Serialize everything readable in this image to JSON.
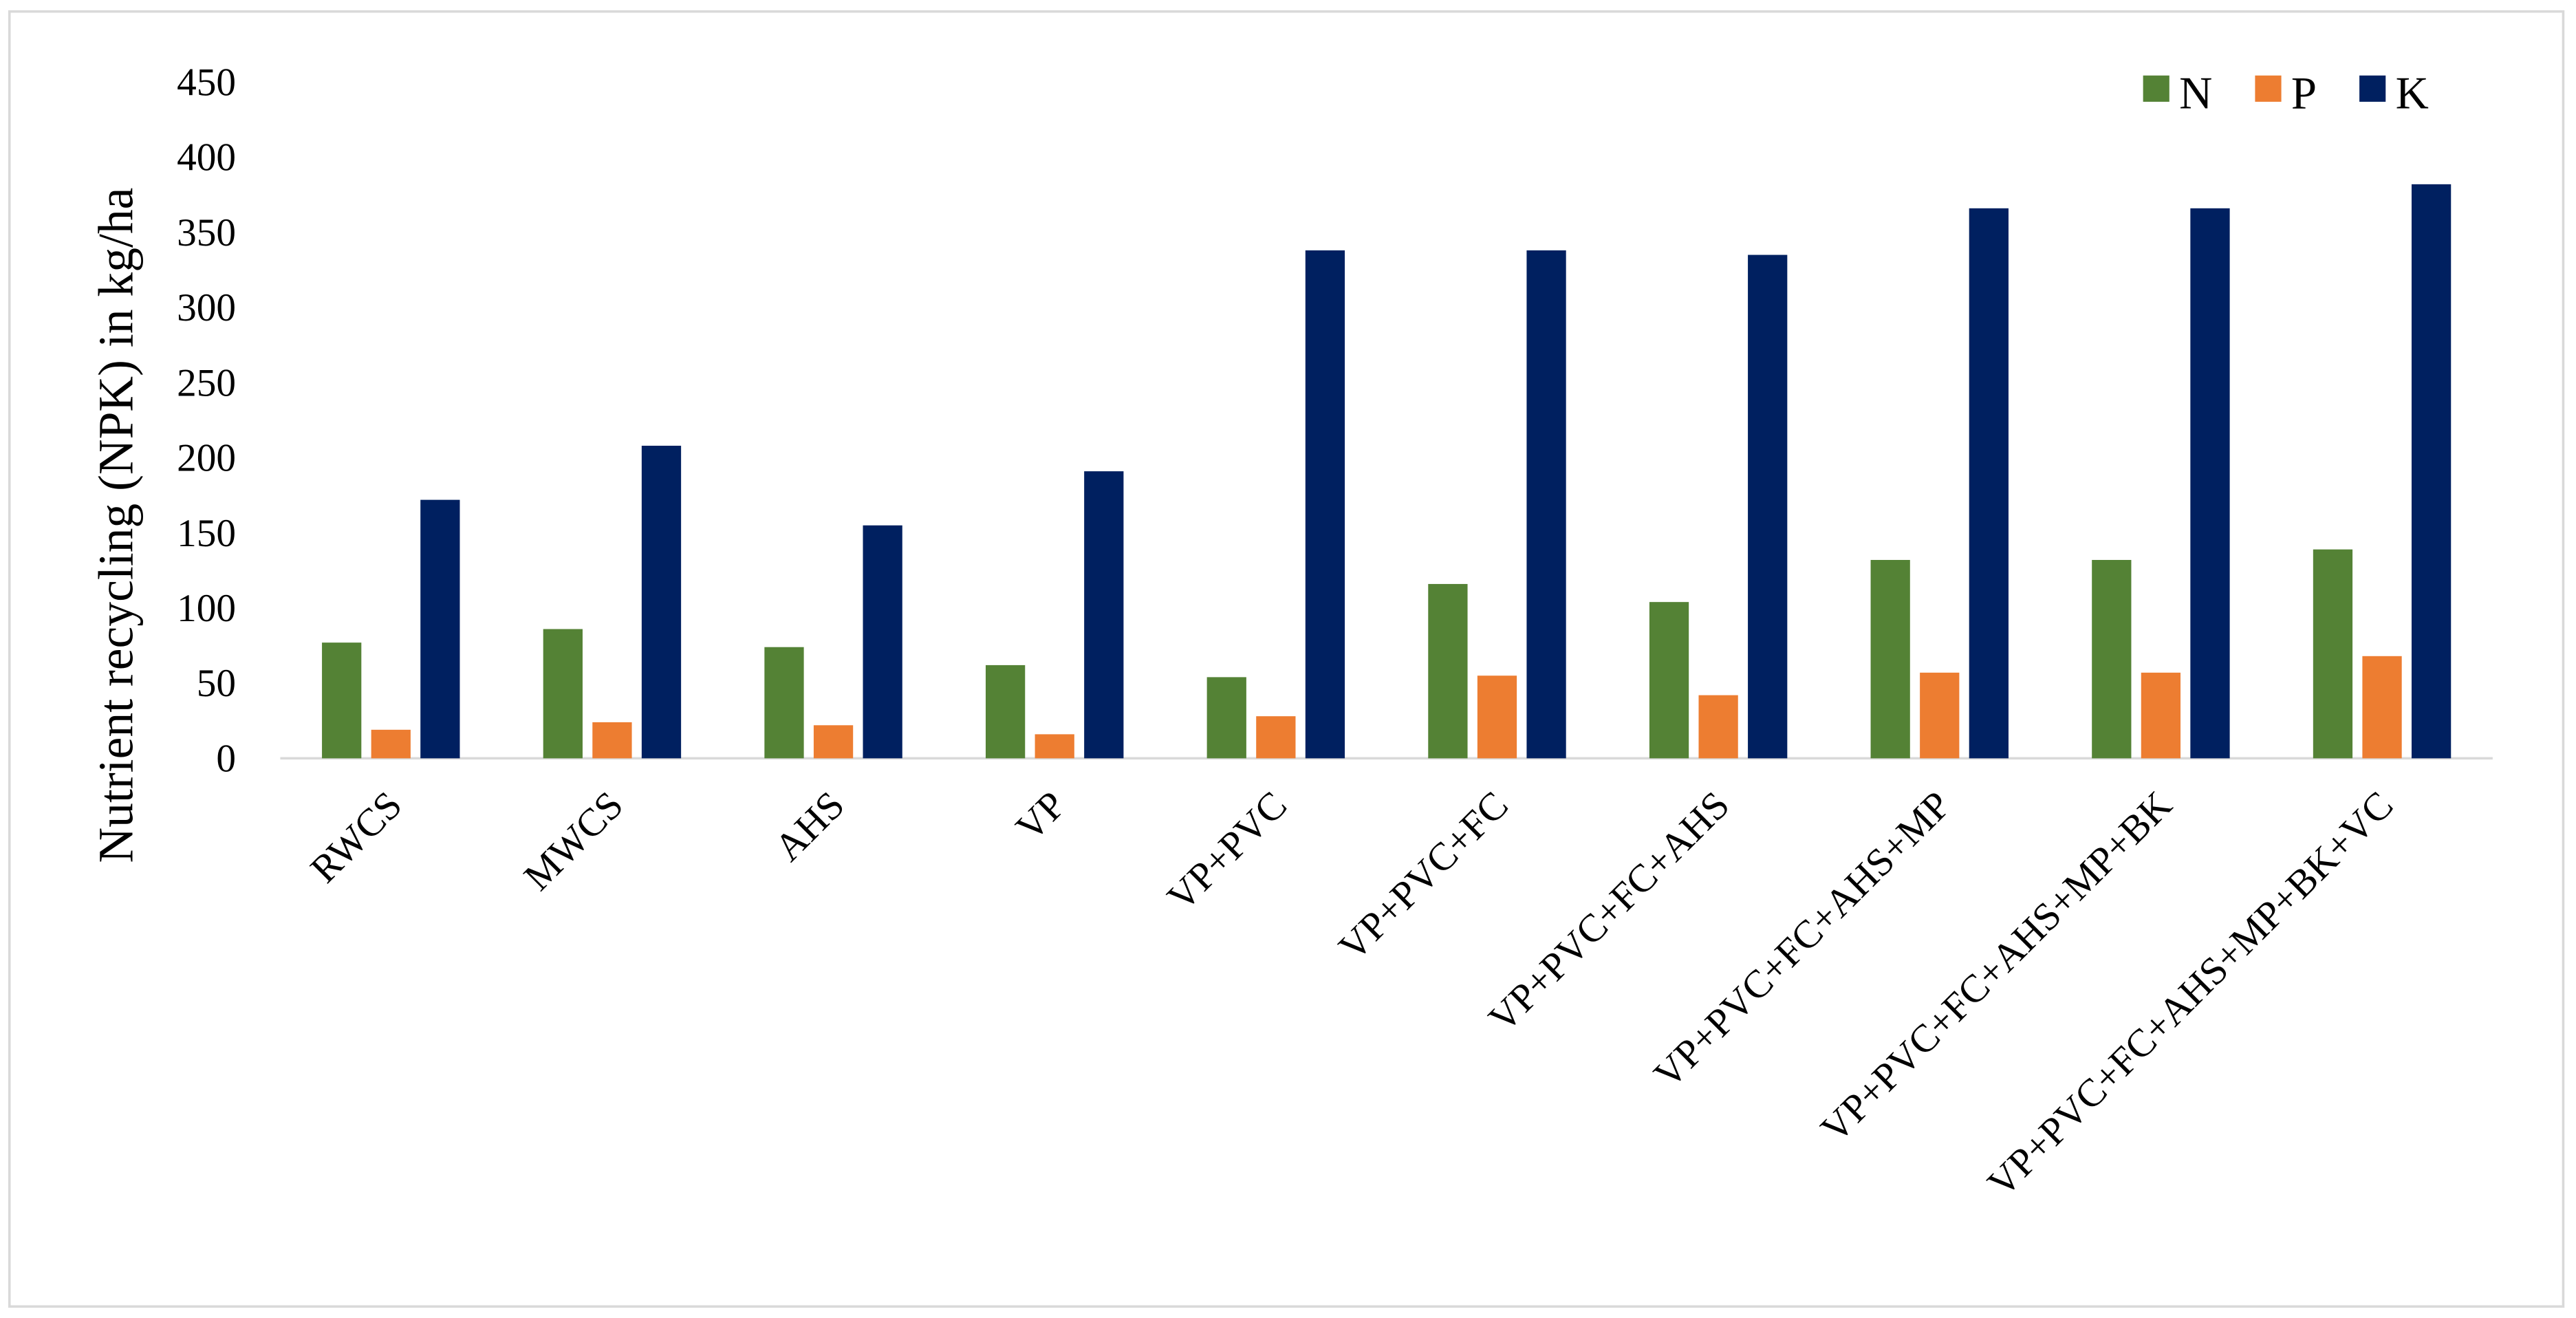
{
  "chart_data": {
    "type": "bar",
    "y_label": "Nutrient recycling (NPK) in kg/ha",
    "categories": [
      "RWCS",
      "MWCS",
      "AHS",
      "VP",
      "VP+PVC",
      "VP+PVC+FC",
      "VP+PVC+FC+AHS",
      "VP+PVC+FC+AHS+MP",
      "VP+PVC+FC+AHS+MP+BK",
      "VP+PVC+FC+AHS+MP+BK+VC"
    ],
    "series": [
      {
        "name": "N",
        "color": "#548235",
        "values": [
          77,
          86,
          74,
          62,
          54,
          116,
          104,
          132,
          132,
          139
        ]
      },
      {
        "name": "P",
        "color": "#ed7d31",
        "values": [
          19,
          24,
          22,
          16,
          28,
          55,
          42,
          57,
          57,
          68
        ]
      },
      {
        "name": "K",
        "color": "#002060",
        "values": [
          172,
          208,
          155,
          191,
          338,
          338,
          335,
          366,
          366,
          382
        ]
      }
    ],
    "ylim": [
      0,
      450
    ],
    "yticks": [
      0,
      50,
      100,
      150,
      200,
      250,
      300,
      350,
      400,
      450
    ],
    "legend": "top-right"
  }
}
